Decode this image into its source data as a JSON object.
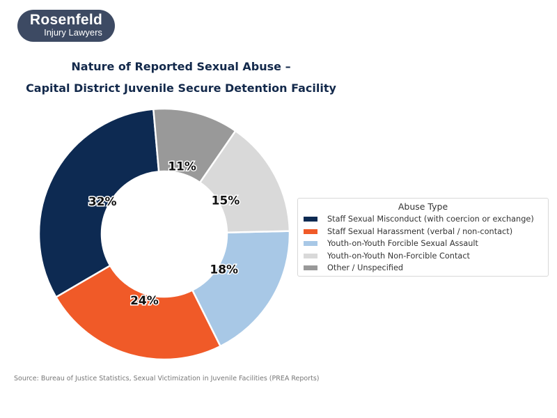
{
  "logo": {
    "line1": "Rosenfeld",
    "line2": "Injury Lawyers"
  },
  "chart_data": {
    "type": "pie",
    "style": "donut",
    "title": [
      "Nature of Reported Sexual Abuse –",
      "Capital District Juvenile Secure Detention Facility"
    ],
    "legend_title": "Abuse Type",
    "legend_placement": "right",
    "categories": [
      "Staff Sexual Misconduct (with coercion or exchange)",
      "Staff Sexual Harassment (verbal / non-contact)",
      "Youth-on-Youth Forcible Sexual Assault",
      "Youth-on-Youth Non-Forcible Contact",
      "Other / Unspecified"
    ],
    "values": [
      32,
      24,
      18,
      15,
      11
    ],
    "labels": [
      "32%",
      "24%",
      "18%",
      "15%",
      "11%"
    ],
    "colors": [
      "#0d2a52",
      "#f05a28",
      "#a8c8e6",
      "#d9d9d9",
      "#999999"
    ]
  },
  "source": "Source: Bureau of Justice Statistics, Sexual Victimization in Juvenile Facilities (PREA Reports)"
}
